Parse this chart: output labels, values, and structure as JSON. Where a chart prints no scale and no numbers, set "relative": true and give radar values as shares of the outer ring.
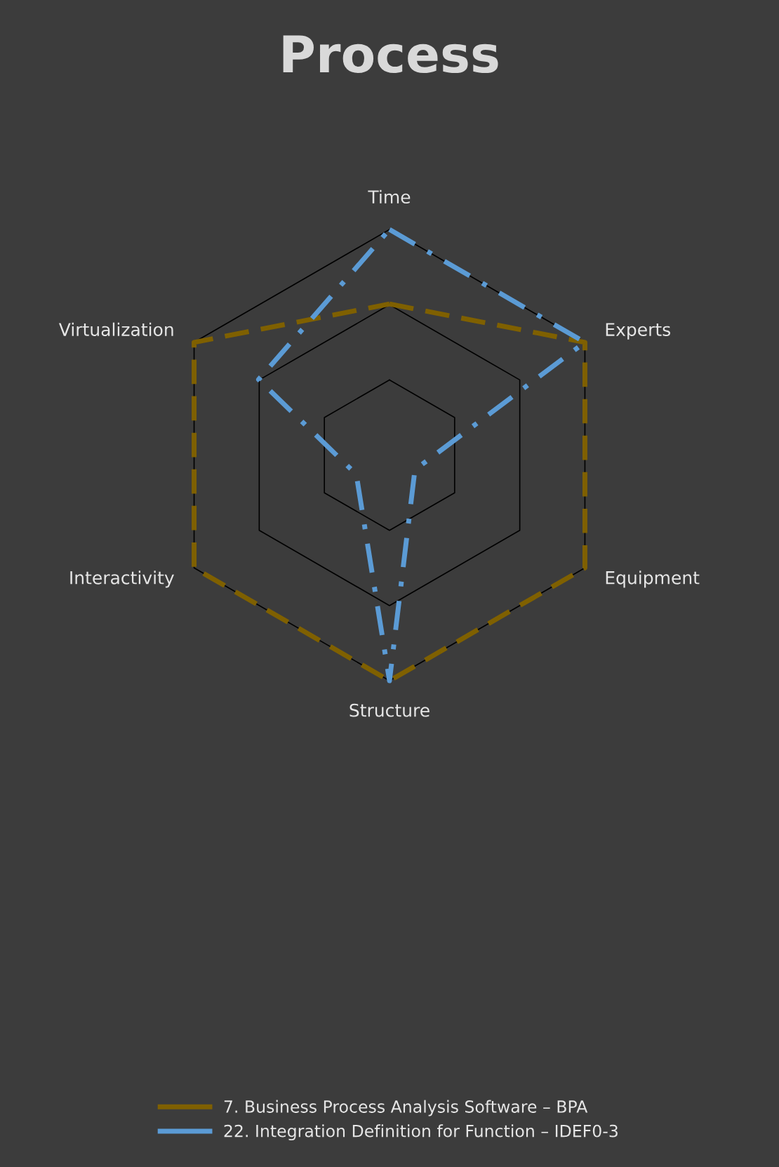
{
  "chart_data": {
    "type": "radar",
    "title": "Process",
    "relative": true,
    "grid": true,
    "legend": "bottom",
    "categories": [
      "Time",
      "Experts",
      "Equipment",
      "Structure",
      "Interactivity",
      "Virtualization"
    ],
    "series": [
      {
        "name": "7. Business Process Analysis Software – BPA",
        "color": "#7f6000",
        "line_style": "dashed",
        "values": [
          0.67,
          1,
          1,
          1,
          1,
          1
        ]
      },
      {
        "name": "22. Integration Definition for Function – IDEF0-3",
        "color": "#5b9bd5",
        "line_style": "dashdot",
        "values": [
          1,
          1,
          0.13,
          1,
          0.17,
          0.67
        ]
      }
    ]
  }
}
